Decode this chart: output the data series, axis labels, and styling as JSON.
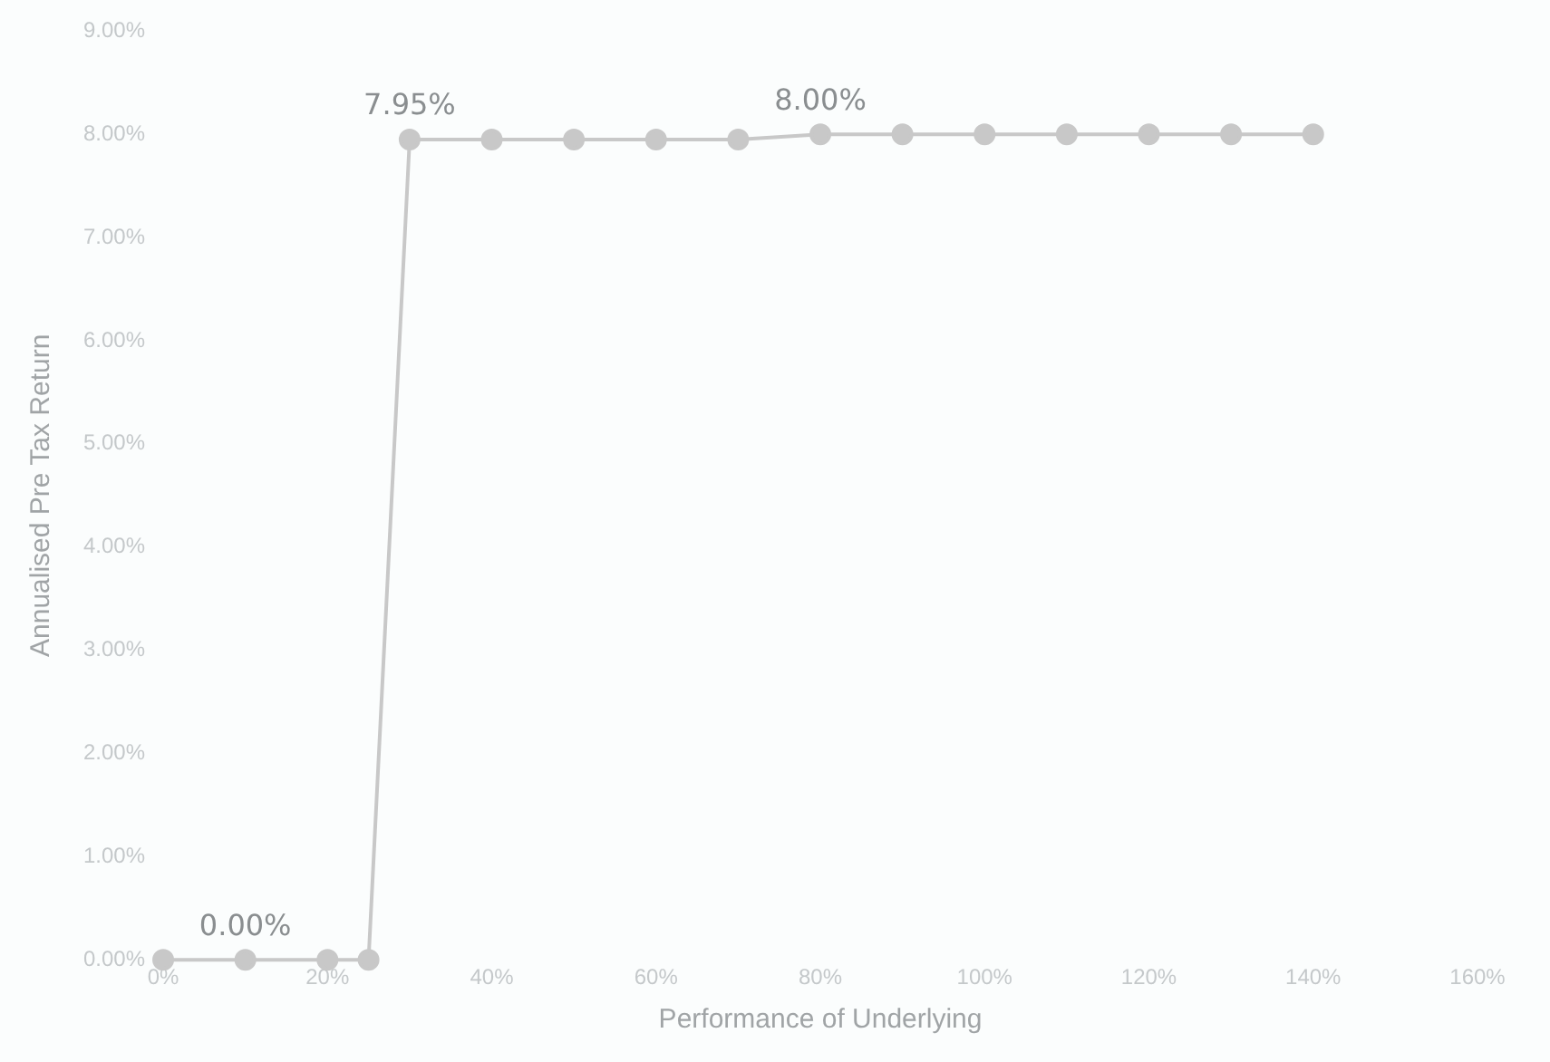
{
  "chart_data": {
    "type": "line",
    "xlabel": "Performance of Underlying",
    "ylabel": "Annualised Pre Tax Return",
    "x": [
      0,
      10,
      20,
      25,
      30,
      40,
      50,
      60,
      70,
      80,
      90,
      100,
      110,
      120,
      130,
      140
    ],
    "series": [
      {
        "color": "#c8c8c8",
        "values": [
          0,
          0,
          0,
          0,
          7.95,
          7.95,
          7.95,
          7.95,
          7.95,
          8.0,
          8.0,
          8.0,
          8.0,
          8.0,
          8.0,
          8.0
        ],
        "value_labels": [
          null,
          "0.00%",
          null,
          null,
          "7.95%",
          null,
          null,
          null,
          null,
          "8.00%",
          null,
          null,
          null,
          null,
          null,
          null
        ]
      }
    ],
    "xlim": [
      0,
      160
    ],
    "xticks": [
      {
        "value": 0,
        "label": "0%"
      },
      {
        "value": 20,
        "label": "20%"
      },
      {
        "value": 40,
        "label": "40%"
      },
      {
        "value": 60,
        "label": "60%"
      },
      {
        "value": 80,
        "label": "80%"
      },
      {
        "value": 100,
        "label": "100%"
      },
      {
        "value": 120,
        "label": "120%"
      },
      {
        "value": 140,
        "label": "140%"
      },
      {
        "value": 160,
        "label": "160%"
      }
    ],
    "ylim": [
      0,
      9
    ],
    "yticks": [
      {
        "value": 0,
        "label": "0.00%"
      },
      {
        "value": 1,
        "label": "1.00%"
      },
      {
        "value": 2,
        "label": "2.00%"
      },
      {
        "value": 3,
        "label": "3.00%"
      },
      {
        "value": 4,
        "label": "4.00%"
      },
      {
        "value": 5,
        "label": "5.00%"
      },
      {
        "value": 6,
        "label": "6.00%"
      },
      {
        "value": 7,
        "label": "7.00%"
      },
      {
        "value": 8,
        "label": "8.00%"
      },
      {
        "value": 9,
        "label": "9.00%"
      }
    ],
    "grid": false,
    "legend": false,
    "marker": "circle",
    "line_style": "solid"
  }
}
